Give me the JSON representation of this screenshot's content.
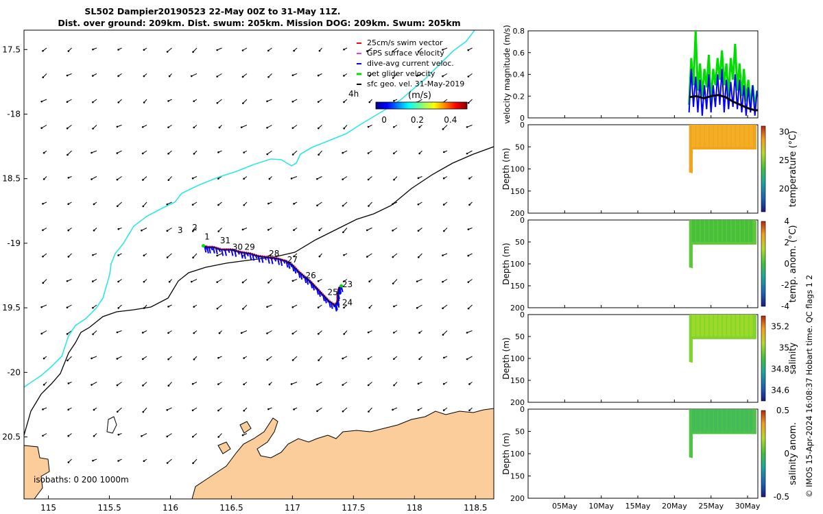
{
  "title_line1": "SL502 Dampier20190523 22-May 00Z to 31-May 11Z.",
  "title_line2": "Dist. over ground: 209km. Dist. swum: 205km. Mission DOG: 209km. Swum: 205km",
  "copyright": "© IMOS 15-Apr-2024 16:08:37 Hobart time. QC flags 1  2",
  "colors": {
    "coast": "#000000",
    "isobath_200": "#000000",
    "isobath_1000": "#2ee6e6",
    "land": "#fbcd9a",
    "swim": "#ff0000",
    "gps": "#e040e0",
    "dac": "#0000ff",
    "net": "#00dd00",
    "sfc": "#000000"
  },
  "chart_data": [
    {
      "type": "map",
      "xlim": [
        114.8,
        118.65
      ],
      "ylim": [
        -20.98,
        -17.35
      ],
      "x_ticks": [
        115,
        115.5,
        116,
        116.5,
        117,
        117.5,
        118,
        118.5
      ],
      "x_tick_labels": [
        "115",
        "115.5",
        "116",
        "116.5",
        "117",
        "117.5",
        "118",
        "118.5"
      ],
      "y_ticks": [
        -17.5,
        -18,
        -18.5,
        -19,
        -19.5,
        -20,
        -20.5
      ],
      "y_tick_labels": [
        "17.5",
        "-18",
        "18.5",
        "-19",
        "19.5",
        "-20",
        "20.5"
      ],
      "legend": {
        "position": "top-right",
        "entries": [
          "25cm/s swim vector",
          "GPS surface velocity",
          "dive-avg current veloc.",
          "net glider velocity",
          "sfc geo. vel. 31-May-2019"
        ],
        "time_label": "4h"
      },
      "colorbar": {
        "label": "(m/s)",
        "ticks": [
          "0",
          "0.2",
          "0.4"
        ],
        "range": [
          -0.05,
          0.5
        ]
      },
      "isobaths_label": "isobaths: 0   200  1000m",
      "day_labels": [
        {
          "text": "3",
          "lon": 116.08,
          "lat": -18.92
        },
        {
          "text": "2",
          "lon": 116.2,
          "lat": -18.9
        },
        {
          "text": "1",
          "lon": 116.3,
          "lat": -18.97
        },
        {
          "text": "31",
          "lon": 116.45,
          "lat": -19.0
        },
        {
          "text": "30",
          "lon": 116.55,
          "lat": -19.05
        },
        {
          "text": "29",
          "lon": 116.65,
          "lat": -19.05
        },
        {
          "text": "28",
          "lon": 116.85,
          "lat": -19.1
        },
        {
          "text": "27",
          "lon": 117.0,
          "lat": -19.15
        },
        {
          "text": "26",
          "lon": 117.15,
          "lat": -19.27
        },
        {
          "text": "25",
          "lon": 117.33,
          "lat": -19.4
        },
        {
          "text": "24",
          "lon": 117.45,
          "lat": -19.48
        },
        {
          "text": "23",
          "lon": 117.45,
          "lat": -19.34
        }
      ],
      "track": [
        [
          116.27,
          -19.02
        ],
        [
          116.3,
          -19.03
        ],
        [
          116.35,
          -19.03
        ],
        [
          116.42,
          -19.05
        ],
        [
          116.5,
          -19.05
        ],
        [
          116.58,
          -19.07
        ],
        [
          116.65,
          -19.08
        ],
        [
          116.72,
          -19.1
        ],
        [
          116.8,
          -19.11
        ],
        [
          116.88,
          -19.12
        ],
        [
          116.95,
          -19.14
        ],
        [
          117.0,
          -19.17
        ],
        [
          117.05,
          -19.22
        ],
        [
          117.1,
          -19.26
        ],
        [
          117.15,
          -19.3
        ],
        [
          117.2,
          -19.35
        ],
        [
          117.25,
          -19.4
        ],
        [
          117.3,
          -19.45
        ],
        [
          117.35,
          -19.48
        ],
        [
          117.37,
          -19.45
        ],
        [
          117.37,
          -19.4
        ],
        [
          117.38,
          -19.35
        ],
        [
          117.4,
          -19.33
        ]
      ]
    },
    {
      "type": "line",
      "ylabel": "velocity magnitude (m/s)",
      "ylim": [
        0,
        0.8
      ],
      "y_tick_labels": [
        "0",
        "0.2",
        "0.4",
        "0.6",
        "0.8"
      ],
      "x_range_days": [
        0,
        31.4
      ],
      "x_tick_labels": [
        "05May",
        "10May",
        "15May",
        "20May",
        "25May",
        "30May"
      ],
      "series": [
        {
          "name": "net glider velocity",
          "x": [
            22,
            22.3,
            22.6,
            22.9,
            23.2,
            23.5,
            23.8,
            24.1,
            24.4,
            24.7,
            25,
            25.3,
            25.6,
            25.9,
            26.2,
            26.5,
            26.8,
            27.1,
            27.4,
            27.7,
            28,
            28.3,
            28.6,
            28.9,
            29.2,
            29.5,
            29.8,
            30.1,
            30.4,
            30.7,
            31,
            31.3
          ],
          "values": [
            0.12,
            0.55,
            0.3,
            0.8,
            0.25,
            0.5,
            0.2,
            0.45,
            0.28,
            0.58,
            0.15,
            0.45,
            0.3,
            0.55,
            0.35,
            0.62,
            0.3,
            0.5,
            0.2,
            0.55,
            0.35,
            0.68,
            0.25,
            0.5,
            0.2,
            0.45,
            0.15,
            0.35,
            0.12,
            0.3,
            0.1,
            0.25
          ]
        },
        {
          "name": "dive-avg current veloc.",
          "x": [
            22,
            22.3,
            22.6,
            22.9,
            23.2,
            23.5,
            23.8,
            24.1,
            24.4,
            24.7,
            25,
            25.3,
            25.6,
            25.9,
            26.2,
            26.5,
            26.8,
            27.1,
            27.4,
            27.7,
            28,
            28.3,
            28.6,
            28.9,
            29.2,
            29.5,
            29.8,
            30.1,
            30.4,
            30.7,
            31,
            31.3
          ],
          "values": [
            0.05,
            0.45,
            0.1,
            0.38,
            0.05,
            0.35,
            0.02,
            0.3,
            0.08,
            0.4,
            0.05,
            0.3,
            0.1,
            0.4,
            0.12,
            0.45,
            0.05,
            0.35,
            0.08,
            0.33,
            0.1,
            0.4,
            0.08,
            0.35,
            0.05,
            0.3,
            0.02,
            0.28,
            0.05,
            0.3,
            0.02,
            0.25
          ]
        },
        {
          "name": "sfc geo. vel.",
          "x": [
            22,
            23,
            24,
            25,
            26,
            27,
            28,
            29,
            30,
            31,
            31.4
          ],
          "values": [
            0.19,
            0.2,
            0.18,
            0.2,
            0.21,
            0.19,
            0.15,
            0.12,
            0.09,
            0.07,
            0.07
          ]
        }
      ]
    },
    {
      "type": "heatmap",
      "variable": "temperature (°C)",
      "ylabel": "Depth (m)",
      "ylim": [
        200,
        0
      ],
      "y_tick_labels": [
        "0",
        "50",
        "100",
        "150",
        "200"
      ],
      "colorbar_ticks": [
        "30",
        "25",
        "20"
      ],
      "colorbar_values": [
        30,
        25,
        20
      ],
      "clim": [
        16,
        31
      ],
      "data_time_range": [
        22,
        31.2
      ],
      "typical_value": 29
    },
    {
      "type": "heatmap",
      "variable": "temp. anom. (°C)",
      "ylabel": "Depth (m)",
      "ylim": [
        200,
        0
      ],
      "y_tick_labels": [
        "0",
        "50",
        "100",
        "150",
        "200"
      ],
      "colorbar_ticks": [
        "4",
        "2",
        "0",
        "-2",
        "-4"
      ],
      "colorbar_values": [
        4,
        2,
        0,
        -2,
        -4
      ],
      "clim": [
        -4,
        4
      ],
      "data_time_range": [
        22,
        31.2
      ],
      "typical_value": 0.3
    },
    {
      "type": "heatmap",
      "variable": "salinity",
      "ylabel": "Depth (m)",
      "ylim": [
        200,
        0
      ],
      "y_tick_labels": [
        "0",
        "50",
        "100",
        "150",
        "200"
      ],
      "colorbar_ticks": [
        "35.2",
        "35",
        "34.8",
        "34.6"
      ],
      "colorbar_values": [
        35.2,
        35.0,
        34.8,
        34.6
      ],
      "clim": [
        34.5,
        35.3
      ],
      "data_time_range": [
        22,
        31.2
      ],
      "typical_value": 35.05
    },
    {
      "type": "heatmap",
      "variable": "salinity anom.",
      "ylabel": "Depth (m)",
      "ylim": [
        200,
        0
      ],
      "y_tick_labels": [
        "0",
        "50",
        "100",
        "150",
        "200"
      ],
      "colorbar_ticks": [
        "0.5",
        "0",
        "-0.5"
      ],
      "colorbar_values": [
        0.5,
        0,
        -0.5
      ],
      "clim": [
        -0.5,
        0.5
      ],
      "data_time_range": [
        22,
        31.2
      ],
      "typical_value": 0.05,
      "x_tick_labels": [
        "05May",
        "10May",
        "15May",
        "20May",
        "25May",
        "30May"
      ]
    }
  ]
}
